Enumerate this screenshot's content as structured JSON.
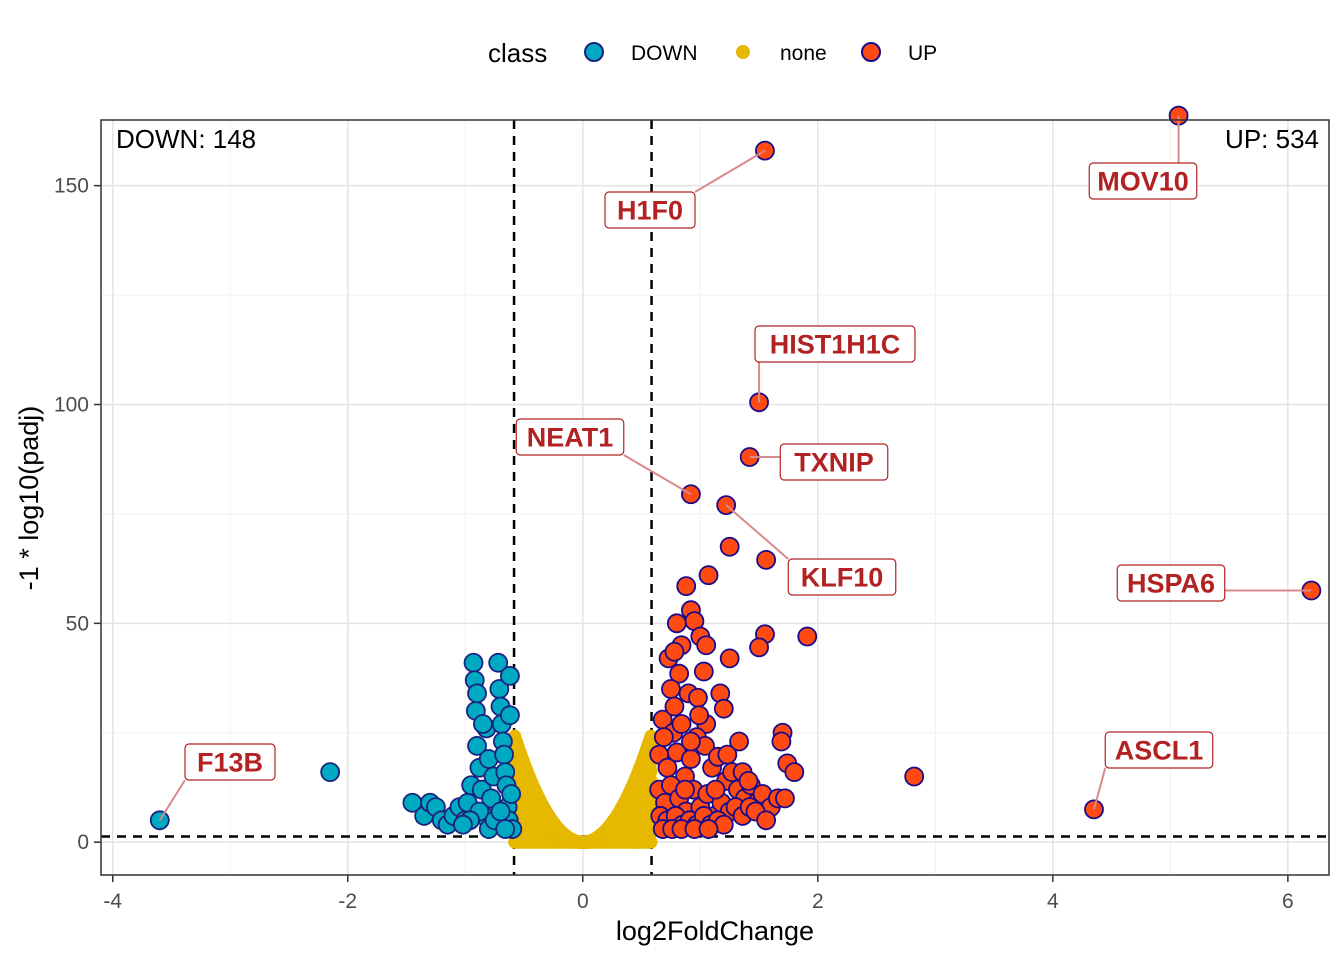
{
  "chart_data": {
    "type": "scatter",
    "title": "",
    "xlabel": "log2FoldChange",
    "ylabel": "-1 * log10(padj)",
    "xlim": [
      -4.1,
      6.35
    ],
    "ylim": [
      -7.5,
      165
    ],
    "x_ticks": [
      -4,
      -2,
      0,
      2,
      4,
      6
    ],
    "x_tick_labels": [
      "-4",
      "-2",
      "0",
      "2",
      "4",
      "6"
    ],
    "y_ticks": [
      0,
      50,
      100,
      150
    ],
    "y_tick_labels": [
      "0",
      "50",
      "100",
      "150"
    ],
    "grid": true,
    "thresholds": {
      "log2fc": [
        -0.585,
        0.585
      ],
      "neg_log10_padj": 1.3
    },
    "legend": {
      "title": "class",
      "position": "top",
      "entries": [
        {
          "label": "DOWN",
          "fill": "#00a9c2",
          "stroke": "#1a237e"
        },
        {
          "label": "none",
          "fill": "#e6b800",
          "stroke": "#e6b800"
        },
        {
          "label": "UP",
          "fill": "#ff4a12",
          "stroke": "#1a0a8c"
        }
      ]
    },
    "counts_text": {
      "down": "DOWN: 148",
      "up": "UP: 534"
    },
    "series": [
      {
        "name": "DOWN",
        "points": [
          [
            -3.6,
            5
          ],
          [
            -2.15,
            16
          ],
          [
            -1.45,
            9
          ],
          [
            -1.35,
            6
          ],
          [
            -1.3,
            9
          ],
          [
            -1.25,
            8
          ],
          [
            -1.2,
            5
          ],
          [
            -1.15,
            4
          ],
          [
            -1.1,
            6
          ],
          [
            -1.05,
            8
          ],
          [
            -1.0,
            5
          ],
          [
            -0.98,
            9
          ],
          [
            -0.95,
            13
          ],
          [
            -0.93,
            41
          ],
          [
            -0.92,
            37
          ],
          [
            -0.91,
            30
          ],
          [
            -0.9,
            22
          ],
          [
            -0.88,
            17
          ],
          [
            -0.86,
            12
          ],
          [
            -0.84,
            6
          ],
          [
            -0.82,
            26
          ],
          [
            -0.8,
            19
          ],
          [
            -0.78,
            10
          ],
          [
            -0.76,
            15
          ],
          [
            -0.74,
            4
          ],
          [
            -0.72,
            41
          ],
          [
            -0.71,
            35
          ],
          [
            -0.7,
            31
          ],
          [
            -0.69,
            27
          ],
          [
            -0.68,
            23
          ],
          [
            -0.67,
            20
          ],
          [
            -0.66,
            16
          ],
          [
            -0.65,
            13
          ],
          [
            -0.64,
            8
          ],
          [
            -0.63,
            5
          ],
          [
            -0.62,
            38
          ],
          [
            -0.62,
            29
          ],
          [
            -0.61,
            11
          ],
          [
            -0.6,
            3
          ],
          [
            -0.88,
            7
          ],
          [
            -0.96,
            5
          ],
          [
            -1.02,
            4
          ],
          [
            -0.8,
            3
          ],
          [
            -0.75,
            5
          ],
          [
            -0.7,
            7
          ],
          [
            -0.66,
            3
          ],
          [
            -0.85,
            27
          ],
          [
            -0.9,
            34
          ]
        ]
      },
      {
        "name": "UP",
        "points": [
          [
            5.07,
            166
          ],
          [
            1.55,
            158
          ],
          [
            1.5,
            100.5
          ],
          [
            1.42,
            88
          ],
          [
            0.92,
            79.5
          ],
          [
            1.22,
            77
          ],
          [
            6.2,
            57.5
          ],
          [
            1.25,
            67.5
          ],
          [
            1.56,
            64.5
          ],
          [
            1.07,
            61
          ],
          [
            0.88,
            58.5
          ],
          [
            1.91,
            47
          ],
          [
            1.55,
            47.5
          ],
          [
            1.5,
            44.5
          ],
          [
            0.92,
            53
          ],
          [
            0.95,
            50.5
          ],
          [
            0.8,
            50
          ],
          [
            1.0,
            47
          ],
          [
            0.84,
            45
          ],
          [
            0.73,
            42
          ],
          [
            0.78,
            43.5
          ],
          [
            1.05,
            45
          ],
          [
            1.25,
            42
          ],
          [
            0.82,
            38.5
          ],
          [
            1.03,
            39
          ],
          [
            0.9,
            34
          ],
          [
            0.98,
            33
          ],
          [
            1.17,
            34
          ],
          [
            1.2,
            30.5
          ],
          [
            0.75,
            35
          ],
          [
            1.05,
            27
          ],
          [
            0.68,
            28
          ],
          [
            0.77,
            25
          ],
          [
            1.7,
            25
          ],
          [
            1.69,
            23
          ],
          [
            1.33,
            23
          ],
          [
            1.74,
            18
          ],
          [
            1.8,
            16
          ],
          [
            2.82,
            15
          ],
          [
            4.35,
            7.5
          ],
          [
            0.65,
            20
          ],
          [
            0.72,
            17
          ],
          [
            0.8,
            20.5
          ],
          [
            0.87,
            15
          ],
          [
            0.92,
            19
          ],
          [
            0.97,
            24
          ],
          [
            1.04,
            22
          ],
          [
            1.1,
            17
          ],
          [
            1.15,
            19.5
          ],
          [
            1.22,
            14
          ],
          [
            1.27,
            16
          ],
          [
            1.32,
            12
          ],
          [
            1.38,
            10
          ],
          [
            1.43,
            13
          ],
          [
            1.48,
            9
          ],
          [
            1.53,
            11
          ],
          [
            1.6,
            8
          ],
          [
            1.66,
            10
          ],
          [
            1.72,
            10
          ],
          [
            0.65,
            12
          ],
          [
            0.7,
            9
          ],
          [
            0.75,
            13
          ],
          [
            0.82,
            10
          ],
          [
            0.88,
            7
          ],
          [
            0.94,
            12
          ],
          [
            1.0,
            8
          ],
          [
            1.06,
            11
          ],
          [
            1.12,
            6
          ],
          [
            1.18,
            9
          ],
          [
            1.25,
            7
          ],
          [
            1.3,
            8
          ],
          [
            1.36,
            6
          ],
          [
            1.42,
            8
          ],
          [
            1.47,
            7
          ],
          [
            1.56,
            5
          ],
          [
            0.66,
            6
          ],
          [
            0.72,
            5
          ],
          [
            0.79,
            6
          ],
          [
            0.85,
            4
          ],
          [
            0.91,
            5
          ],
          [
            0.97,
            4
          ],
          [
            1.03,
            6
          ],
          [
            1.09,
            4
          ],
          [
            1.15,
            5
          ],
          [
            1.2,
            4
          ],
          [
            0.68,
            3
          ],
          [
            0.76,
            3
          ],
          [
            0.84,
            3
          ],
          [
            0.95,
            3
          ],
          [
            1.07,
            3
          ],
          [
            1.13,
            12
          ],
          [
            1.23,
            20
          ],
          [
            1.36,
            16
          ],
          [
            0.84,
            27
          ],
          [
            0.92,
            23
          ],
          [
            0.99,
            29
          ],
          [
            0.78,
            31
          ],
          [
            0.69,
            24
          ],
          [
            0.87,
            12
          ],
          [
            1.41,
            14
          ]
        ]
      }
    ],
    "labels": [
      {
        "gene": "MOV10",
        "x": 5.07,
        "y": 166
      },
      {
        "gene": "H1F0",
        "x": 1.55,
        "y": 158
      },
      {
        "gene": "HIST1H1C",
        "x": 1.5,
        "y": 100.5
      },
      {
        "gene": "TXNIP",
        "x": 1.42,
        "y": 88
      },
      {
        "gene": "NEAT1",
        "x": 0.92,
        "y": 79.5
      },
      {
        "gene": "KLF10",
        "x": 1.22,
        "y": 77
      },
      {
        "gene": "HSPA6",
        "x": 6.2,
        "y": 57.5
      },
      {
        "gene": "ASCL1",
        "x": 4.35,
        "y": 7.5
      },
      {
        "gene": "F13B",
        "x": -3.6,
        "y": 5
      }
    ]
  }
}
